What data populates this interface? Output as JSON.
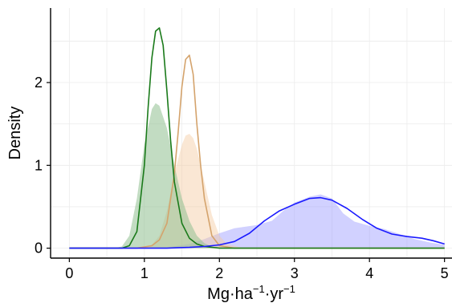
{
  "chart_data": {
    "type": "area",
    "xlabel": {
      "base": "Mg·ha",
      "sup1": "−1",
      "mid": "·yr",
      "sup2": "−1"
    },
    "ylabel": "Density",
    "xlim": [
      -0.25,
      5.1
    ],
    "ylim": [
      -0.12,
      2.9
    ],
    "x_ticks": [
      0,
      1,
      2,
      3,
      4,
      5
    ],
    "x_tick_labels": [
      "0",
      "1",
      "2",
      "3",
      "4",
      "5"
    ],
    "y_ticks": [
      0,
      1,
      2
    ],
    "y_tick_labels": [
      "0",
      "1",
      "2"
    ],
    "grid": true,
    "legend": "none",
    "series": [
      {
        "style": "filled",
        "color": "#9999ff",
        "opacity": 0.45,
        "x": [
          0,
          0.8,
          1.3,
          1.6,
          1.8,
          2.0,
          2.2,
          2.5,
          2.7,
          2.85,
          3.0,
          3.2,
          3.35,
          3.5,
          3.65,
          3.8,
          4.0,
          4.2,
          4.4,
          4.6,
          4.8,
          5.0
        ],
        "y": [
          0,
          0,
          0.01,
          0.05,
          0.11,
          0.18,
          0.24,
          0.28,
          0.33,
          0.45,
          0.55,
          0.62,
          0.65,
          0.6,
          0.42,
          0.32,
          0.27,
          0.23,
          0.17,
          0.11,
          0.07,
          0.04
        ]
      },
      {
        "style": "filled",
        "color": "#f5c9a0",
        "opacity": 0.45,
        "x": [
          0,
          0.9,
          1.1,
          1.2,
          1.3,
          1.4,
          1.5,
          1.55,
          1.6,
          1.65,
          1.7,
          1.8,
          1.9,
          2.0,
          2.1,
          2.3,
          2.5,
          5.0
        ],
        "y": [
          0,
          0,
          0.04,
          0.15,
          0.45,
          0.9,
          1.25,
          1.36,
          1.38,
          1.33,
          1.2,
          0.8,
          0.4,
          0.15,
          0.05,
          0.005,
          0,
          0
        ]
      },
      {
        "style": "filled",
        "color": "#8fc08f",
        "opacity": 0.55,
        "x": [
          0,
          0.6,
          0.7,
          0.8,
          0.9,
          1.0,
          1.1,
          1.15,
          1.2,
          1.3,
          1.4,
          1.5,
          1.6,
          1.7,
          1.8,
          1.9,
          2.0,
          2.2,
          5.0
        ],
        "y": [
          0,
          0,
          0.02,
          0.15,
          0.6,
          1.25,
          1.68,
          1.75,
          1.72,
          1.45,
          1.0,
          0.6,
          0.33,
          0.15,
          0.06,
          0.02,
          0.01,
          0,
          0
        ]
      },
      {
        "style": "line",
        "color": "#d4a36c",
        "x": [
          0,
          0.9,
          1.1,
          1.2,
          1.3,
          1.4,
          1.45,
          1.5,
          1.55,
          1.6,
          1.65,
          1.7,
          1.75,
          1.8,
          1.9,
          2.0,
          2.2,
          5.0
        ],
        "y": [
          0,
          0,
          0.03,
          0.1,
          0.3,
          0.9,
          1.4,
          1.95,
          2.28,
          2.33,
          2.1,
          1.5,
          1.0,
          0.6,
          0.15,
          0.03,
          0,
          0
        ]
      },
      {
        "style": "line",
        "color": "#1a7a1a",
        "x": [
          0,
          0.7,
          0.8,
          0.9,
          1.0,
          1.05,
          1.1,
          1.15,
          1.2,
          1.25,
          1.3,
          1.35,
          1.4,
          1.5,
          1.6,
          1.7,
          1.8,
          2.0,
          5.0
        ],
        "y": [
          0,
          0,
          0.03,
          0.2,
          1.0,
          1.7,
          2.3,
          2.62,
          2.66,
          2.45,
          1.9,
          1.3,
          0.8,
          0.3,
          0.12,
          0.05,
          0.02,
          0,
          0
        ]
      },
      {
        "style": "line",
        "color": "#1a1aff",
        "x": [
          0,
          1.3,
          1.6,
          1.8,
          2.0,
          2.2,
          2.4,
          2.6,
          2.8,
          3.0,
          3.2,
          3.35,
          3.5,
          3.7,
          3.9,
          4.1,
          4.3,
          4.5,
          4.7,
          4.85,
          5.0
        ],
        "y": [
          0,
          0,
          0.01,
          0.02,
          0.04,
          0.08,
          0.18,
          0.33,
          0.45,
          0.53,
          0.6,
          0.61,
          0.58,
          0.48,
          0.35,
          0.24,
          0.17,
          0.14,
          0.12,
          0.09,
          0.05
        ]
      }
    ]
  }
}
